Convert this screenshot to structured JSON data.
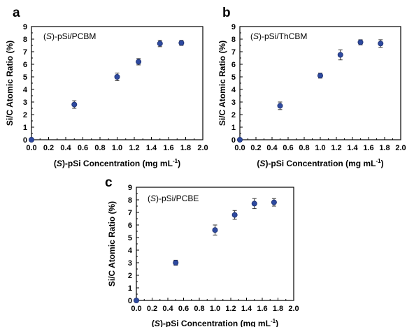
{
  "chart_data": [
    {
      "type": "scatter",
      "panel_letter": "a",
      "inset_prefix": "(",
      "inset_italic": "S",
      "inset_suffix": ")-pSi/PCBM",
      "xlabel_prefix": "(",
      "xlabel_italic": "S",
      "xlabel_main": ")-pSi Concentration (mg mL",
      "xlabel_sup": "-1",
      "xlabel_close": ")",
      "ylabel": "Si/C Atomic Ratio (%)",
      "xlim": [
        0,
        2.0
      ],
      "ylim": [
        0,
        9
      ],
      "xticks": [
        "0.0",
        "0.2",
        "0.4",
        "0.6",
        "0.8",
        "1.0",
        "1.2",
        "1.4",
        "1.6",
        "1.8",
        "2.0"
      ],
      "yticks": [
        "0",
        "1",
        "2",
        "3",
        "4",
        "5",
        "6",
        "7",
        "8",
        "9"
      ],
      "x": [
        0.0,
        0.5,
        1.0,
        1.25,
        1.5,
        1.75
      ],
      "y": [
        0.0,
        2.8,
        5.0,
        6.2,
        7.65,
        7.7
      ],
      "yerr": [
        0.1,
        0.3,
        0.3,
        0.25,
        0.25,
        0.2
      ]
    },
    {
      "type": "scatter",
      "panel_letter": "b",
      "inset_prefix": "(",
      "inset_italic": "S",
      "inset_suffix": ")-pSi/ThCBM",
      "xlabel_prefix": "(",
      "xlabel_italic": "S",
      "xlabel_main": ")-pSi Concentration (mg mL",
      "xlabel_sup": "-1",
      "xlabel_close": ")",
      "ylabel": "Si/C Atomic Ratio (%)",
      "xlim": [
        0,
        2.0
      ],
      "ylim": [
        0,
        9
      ],
      "xticks": [
        "0.0",
        "0.2",
        "0.4",
        "0.6",
        "0.8",
        "1.0",
        "1.2",
        "1.4",
        "1.6",
        "1.8",
        "2.0"
      ],
      "yticks": [
        "0",
        "1",
        "2",
        "3",
        "4",
        "5",
        "6",
        "7",
        "8",
        "9"
      ],
      "x": [
        0.0,
        0.5,
        1.0,
        1.25,
        1.5,
        1.75
      ],
      "y": [
        0.0,
        2.7,
        5.1,
        6.75,
        7.75,
        7.65
      ],
      "yerr": [
        0.1,
        0.3,
        0.2,
        0.4,
        0.2,
        0.3
      ]
    },
    {
      "type": "scatter",
      "panel_letter": "c",
      "inset_prefix": "(",
      "inset_italic": "S",
      "inset_suffix": ")-pSi/PCBE",
      "xlabel_prefix": "(",
      "xlabel_italic": "S",
      "xlabel_main": ")-pSi Concentration (mg mL",
      "xlabel_sup": "-1",
      "xlabel_close": ")",
      "ylabel": "Si/C Atomic Ratio (%)",
      "xlim": [
        0,
        2.0
      ],
      "ylim": [
        0,
        9
      ],
      "xticks": [
        "0.0",
        "0.2",
        "0.4",
        "0.6",
        "0.8",
        "1.0",
        "1.2",
        "1.4",
        "1.6",
        "1.8",
        "2.0"
      ],
      "yticks": [
        "0",
        "1",
        "2",
        "3",
        "4",
        "5",
        "6",
        "7",
        "8",
        "9"
      ],
      "x": [
        0.0,
        0.5,
        1.0,
        1.25,
        1.5,
        1.75
      ],
      "y": [
        0.0,
        3.0,
        5.6,
        6.8,
        7.7,
        7.8
      ],
      "yerr": [
        0.1,
        0.2,
        0.4,
        0.35,
        0.4,
        0.3
      ]
    }
  ],
  "colors": {
    "marker_fill": "#2e4aa0",
    "marker_stroke": "#1b2d6b"
  }
}
